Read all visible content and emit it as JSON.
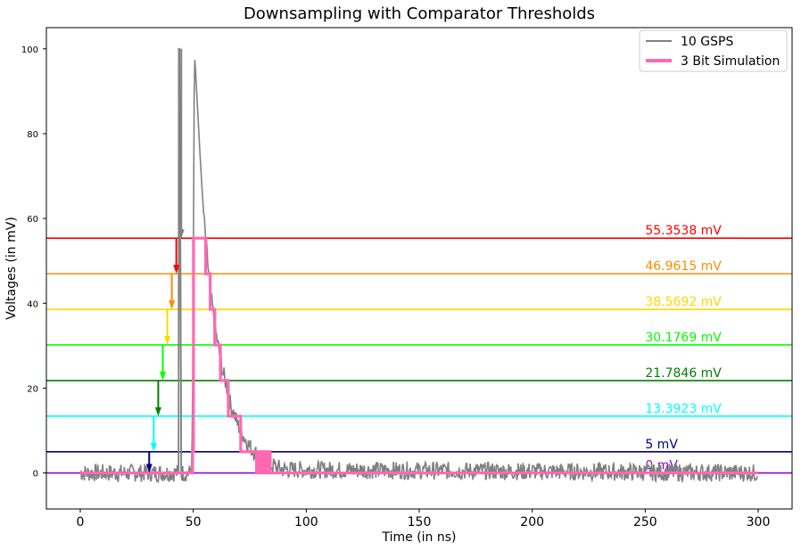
{
  "chart_data": {
    "type": "line",
    "title": "Downsampling with Comparator Thresholds",
    "xlabel": "Time (in ns)",
    "ylabel": "Voltages (in mV)",
    "xlim": [
      -15,
      315
    ],
    "ylim": [
      -8.5,
      105
    ],
    "xticks": [
      0,
      50,
      100,
      150,
      200,
      250,
      300
    ],
    "yticks": [
      0,
      20,
      40,
      60,
      80,
      100
    ],
    "grid": false,
    "legend_position": "top-right",
    "series": [
      {
        "name": "10 GSPS",
        "color": "#808080",
        "noise_range": [
          0,
          300
        ],
        "noise_amplitude_mV": 3,
        "x": [
          0,
          43.5,
          43.6,
          43.9,
          44.3,
          44.7,
          48.5,
          49.2,
          49.6,
          50.0,
          50.2,
          50.5,
          51.0,
          52.0,
          53.0,
          54.0,
          55.0,
          56.0,
          57.0,
          58.0,
          59.0,
          60.0,
          61.0,
          62.0,
          63.0,
          64.0,
          65.0,
          66.0,
          68.0,
          70.0,
          72.0,
          74.0,
          76.0,
          78.0,
          80.0,
          82.0,
          84.0,
          86.0,
          90.0,
          300
        ],
        "y": [
          0,
          0,
          100,
          100,
          55,
          0,
          0,
          2,
          8,
          40,
          70,
          99,
          95,
          85,
          75,
          66,
          58,
          52,
          46,
          41,
          37,
          33,
          30,
          27,
          24,
          22,
          20,
          17,
          14,
          11,
          9,
          7,
          5.5,
          4.5,
          3.5,
          2.5,
          2,
          1.5,
          0.8,
          0
        ]
      },
      {
        "name": "3 Bit Simulation",
        "color": "#ff69b4",
        "x": [
          0,
          49,
          49.7,
          49.7,
          50.1,
          50.1,
          55.5,
          55.5,
          57.5,
          57.5,
          59.5,
          59.5,
          62.0,
          62.0,
          65.5,
          65.5,
          71.0,
          71.0,
          78.0,
          78.0,
          78.6,
          78.6,
          79.2,
          79.2,
          79.8,
          79.8,
          80.4,
          80.4,
          81.0,
          81.0,
          81.6,
          81.6,
          82.2,
          82.2,
          82.8,
          82.8,
          83.4,
          83.4,
          84.0,
          84.0,
          300
        ],
        "y": [
          0,
          0,
          0,
          5,
          5,
          55.3538,
          55.3538,
          46.9615,
          46.9615,
          38.5692,
          38.5692,
          30.1769,
          30.1769,
          21.7846,
          21.7846,
          13.3923,
          13.3923,
          5,
          5,
          0,
          0,
          5,
          5,
          0,
          0,
          5,
          5,
          0,
          0,
          5,
          5,
          0,
          0,
          5,
          5,
          0,
          0,
          5,
          5,
          0,
          0
        ]
      }
    ],
    "thresholds": [
      {
        "label": "55.3538 mV",
        "value": 55.3538,
        "color": "#ff0000"
      },
      {
        "label": "46.9615 mV",
        "value": 46.9615,
        "color": "#ff8c00"
      },
      {
        "label": "38.5692 mV",
        "value": 38.5692,
        "color": "#ffd700"
      },
      {
        "label": "30.1769 mV",
        "value": 30.1769,
        "color": "#00ff00"
      },
      {
        "label": "21.7846 mV",
        "value": 21.7846,
        "color": "#008000"
      },
      {
        "label": "13.3923 mV",
        "value": 13.3923,
        "color": "#00ffff"
      },
      {
        "label": "5 mV",
        "value": 5,
        "color": "#000080"
      },
      {
        "label": "0 mV",
        "value": 0,
        "color": "#9400d3"
      }
    ],
    "threshold_label_x": 250,
    "arrows": [
      {
        "x": 44.7,
        "y_from": 100,
        "y_to": 55.3538,
        "color": "#808080"
      },
      {
        "x": 42.5,
        "y_from": 55.3538,
        "y_to": 46.9615,
        "color": "#ff0000"
      },
      {
        "x": 40.5,
        "y_from": 46.9615,
        "y_to": 38.5692,
        "color": "#ff8c00"
      },
      {
        "x": 38.5,
        "y_from": 38.5692,
        "y_to": 30.1769,
        "color": "#ffd700"
      },
      {
        "x": 36.5,
        "y_from": 30.1769,
        "y_to": 21.7846,
        "color": "#00ff00"
      },
      {
        "x": 34.5,
        "y_from": 21.7846,
        "y_to": 13.3923,
        "color": "#008000"
      },
      {
        "x": 32.5,
        "y_from": 13.3923,
        "y_to": 5,
        "color": "#00ffff"
      },
      {
        "x": 30.5,
        "y_from": 5,
        "y_to": 0,
        "color": "#000080"
      }
    ]
  }
}
